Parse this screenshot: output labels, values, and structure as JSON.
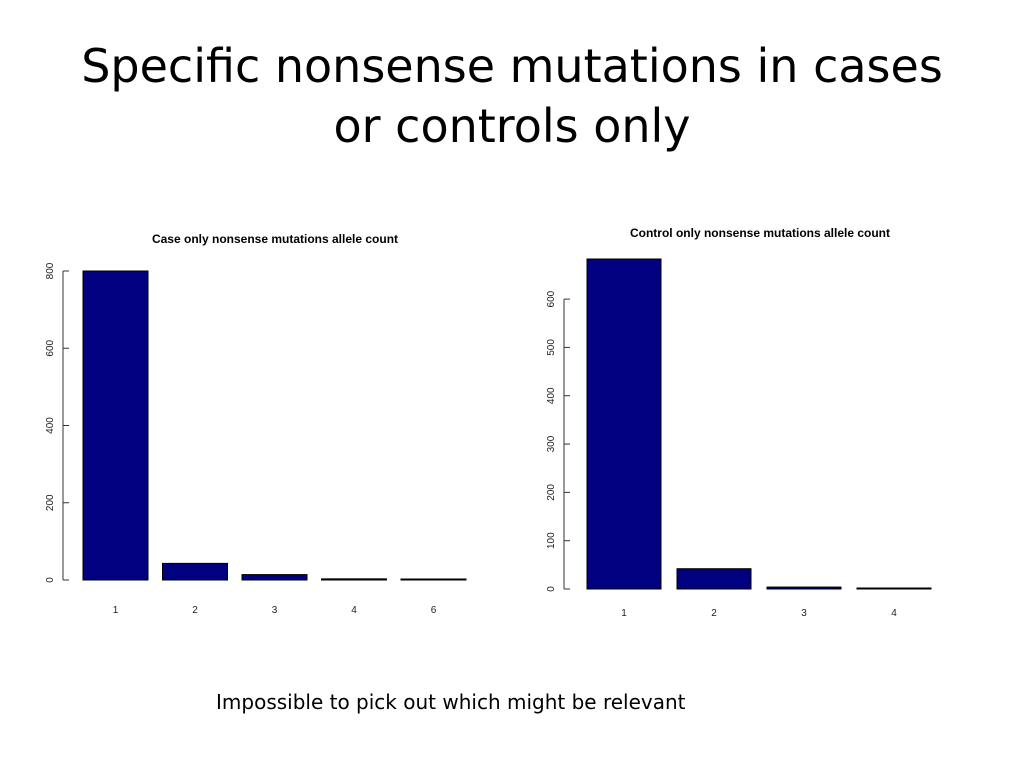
{
  "slide": {
    "title_line1": "Specific nonsense mutations in cases",
    "title_line2": "or controls only",
    "caption": "Impossible to pick out which might be relevant"
  },
  "colors": {
    "bar_fill": "#000080",
    "bar_stroke": "#000000",
    "axis": "#333333"
  },
  "chart_data": [
    {
      "type": "bar",
      "title": "Case only nonsense mutations allele count",
      "categories": [
        "1",
        "2",
        "3",
        "4",
        "6"
      ],
      "values": [
        800,
        43,
        14,
        3,
        1
      ],
      "ylim": [
        0,
        800
      ],
      "yticks": [
        0,
        200,
        400,
        600,
        800
      ],
      "xlabel": "",
      "ylabel": "",
      "grid": false
    },
    {
      "type": "bar",
      "title": "Control only nonsense mutations allele count",
      "categories": [
        "1",
        "2",
        "3",
        "4"
      ],
      "values": [
        683,
        42,
        4,
        1
      ],
      "ylim": [
        0,
        683
      ],
      "yticks": [
        0,
        100,
        200,
        300,
        400,
        500,
        600
      ],
      "xlabel": "",
      "ylabel": "",
      "grid": false
    }
  ]
}
